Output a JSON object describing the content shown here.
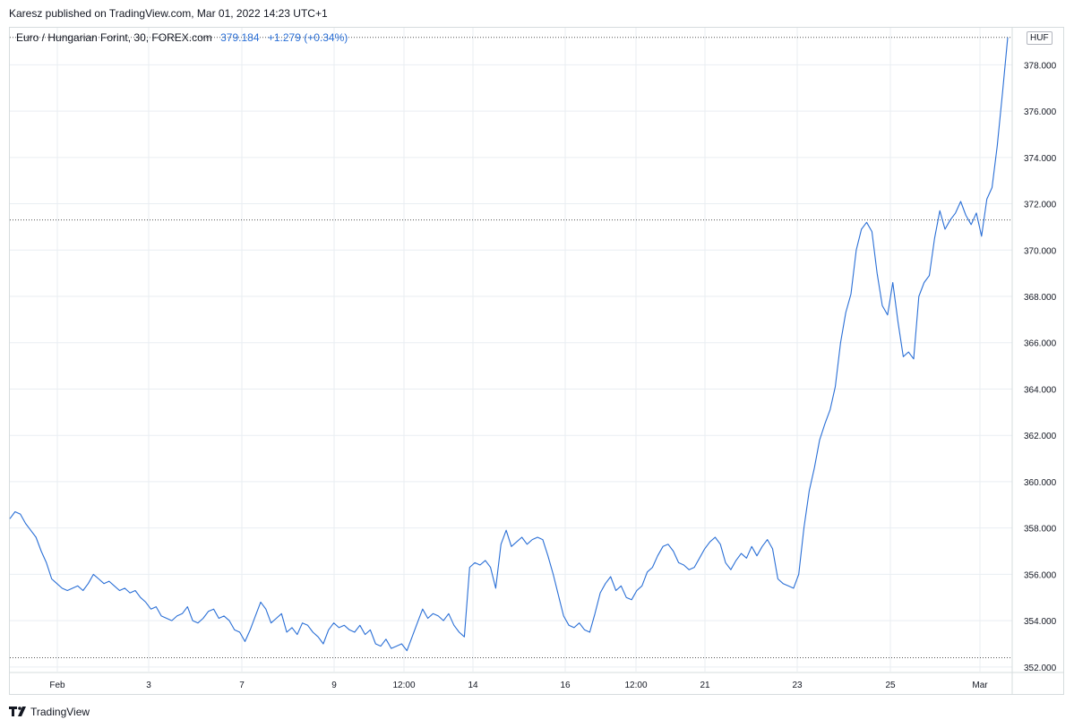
{
  "header": {
    "publisher": "Karesz published on TradingView.com, Mar 01, 2022 14:23 UTC+1"
  },
  "legend": {
    "symbol": "Euro / Hungarian Forint, 30, FOREX.com",
    "last": "379.184",
    "change": "+1.279 (+0.34%)"
  },
  "currency_badge": "HUF",
  "footer": {
    "brand": "TradingView",
    "logo_icon": "tradingview-logo-icon"
  },
  "colors": {
    "line": "#2a6fd6",
    "grid": "#e9eef2",
    "axis_text": "#131722",
    "dotted": "#555555"
  },
  "chart_data": {
    "type": "line",
    "title": "Euro / Hungarian Forint, 30, FOREX.com",
    "xlabel": "",
    "ylabel": "",
    "ylim": [
      351.8,
      379.6
    ],
    "grid": true,
    "y_ticks": [
      "352.000",
      "354.000",
      "356.000",
      "358.000",
      "360.000",
      "362.000",
      "364.000",
      "366.000",
      "368.000",
      "370.000",
      "372.000",
      "374.000",
      "376.000",
      "378.000"
    ],
    "x_ticks": [
      "Feb",
      "3",
      "7",
      "9",
      "12:00",
      "14",
      "16",
      "12:00",
      "21",
      "23",
      "25",
      "Mar"
    ],
    "price_lines": [
      379.184,
      371.3,
      352.4
    ],
    "series": [
      {
        "values": [
          358.4,
          358.7,
          358.6,
          358.2,
          357.9,
          357.6,
          357.0,
          356.5,
          355.8,
          355.6,
          355.4,
          355.3,
          355.4,
          355.5,
          355.3,
          355.6,
          356.0,
          355.8,
          355.6,
          355.7,
          355.5,
          355.3,
          355.4,
          355.2,
          355.3,
          355.0,
          354.8,
          354.5,
          354.6,
          354.2,
          354.1,
          354.0,
          354.2,
          354.3,
          354.6,
          354.0,
          353.9,
          354.1,
          354.4,
          354.5,
          354.1,
          354.2,
          354.0,
          353.6,
          353.5,
          353.1,
          353.6,
          354.2,
          354.8,
          354.5,
          353.9,
          354.1,
          354.3,
          353.5,
          353.7,
          353.4,
          353.9,
          353.8,
          353.5,
          353.3,
          353.0,
          353.6,
          353.9,
          353.7,
          353.8,
          353.6,
          353.5,
          353.8,
          353.4,
          353.6,
          353.0,
          352.9,
          353.2,
          352.8,
          352.9,
          353.0,
          352.7,
          353.3,
          353.9,
          354.5,
          354.1,
          354.3,
          354.2,
          354.0,
          354.3,
          353.8,
          353.5,
          353.3,
          356.3,
          356.5,
          356.4,
          356.6,
          356.3,
          355.4,
          357.3,
          357.9,
          357.2,
          357.4,
          357.6,
          357.3,
          357.5,
          357.6,
          357.5,
          356.8,
          356.0,
          355.1,
          354.2,
          353.8,
          353.7,
          353.9,
          353.6,
          353.5,
          354.3,
          355.2,
          355.6,
          355.9,
          355.3,
          355.5,
          355.0,
          354.9,
          355.3,
          355.5,
          356.1,
          356.3,
          356.8,
          357.2,
          357.3,
          357.0,
          356.5,
          356.4,
          356.2,
          356.3,
          356.7,
          357.1,
          357.4,
          357.6,
          357.3,
          356.5,
          356.2,
          356.6,
          356.9,
          356.7,
          357.2,
          356.8,
          357.2,
          357.5,
          357.1,
          355.8,
          355.6,
          355.5,
          355.4,
          356.0,
          358.0,
          359.6,
          360.6,
          361.8,
          362.5,
          363.1,
          364.1,
          366.0,
          367.3,
          368.1,
          370.0,
          370.9,
          371.2,
          370.8,
          369.0,
          367.6,
          367.2,
          368.6,
          366.9,
          365.4,
          365.6,
          365.3,
          368.0,
          368.6,
          368.9,
          370.5,
          371.7,
          370.9,
          371.3,
          371.6,
          372.1,
          371.5,
          371.1,
          371.6,
          370.6,
          372.2,
          372.7,
          374.5,
          376.8,
          379.184
        ]
      }
    ]
  }
}
